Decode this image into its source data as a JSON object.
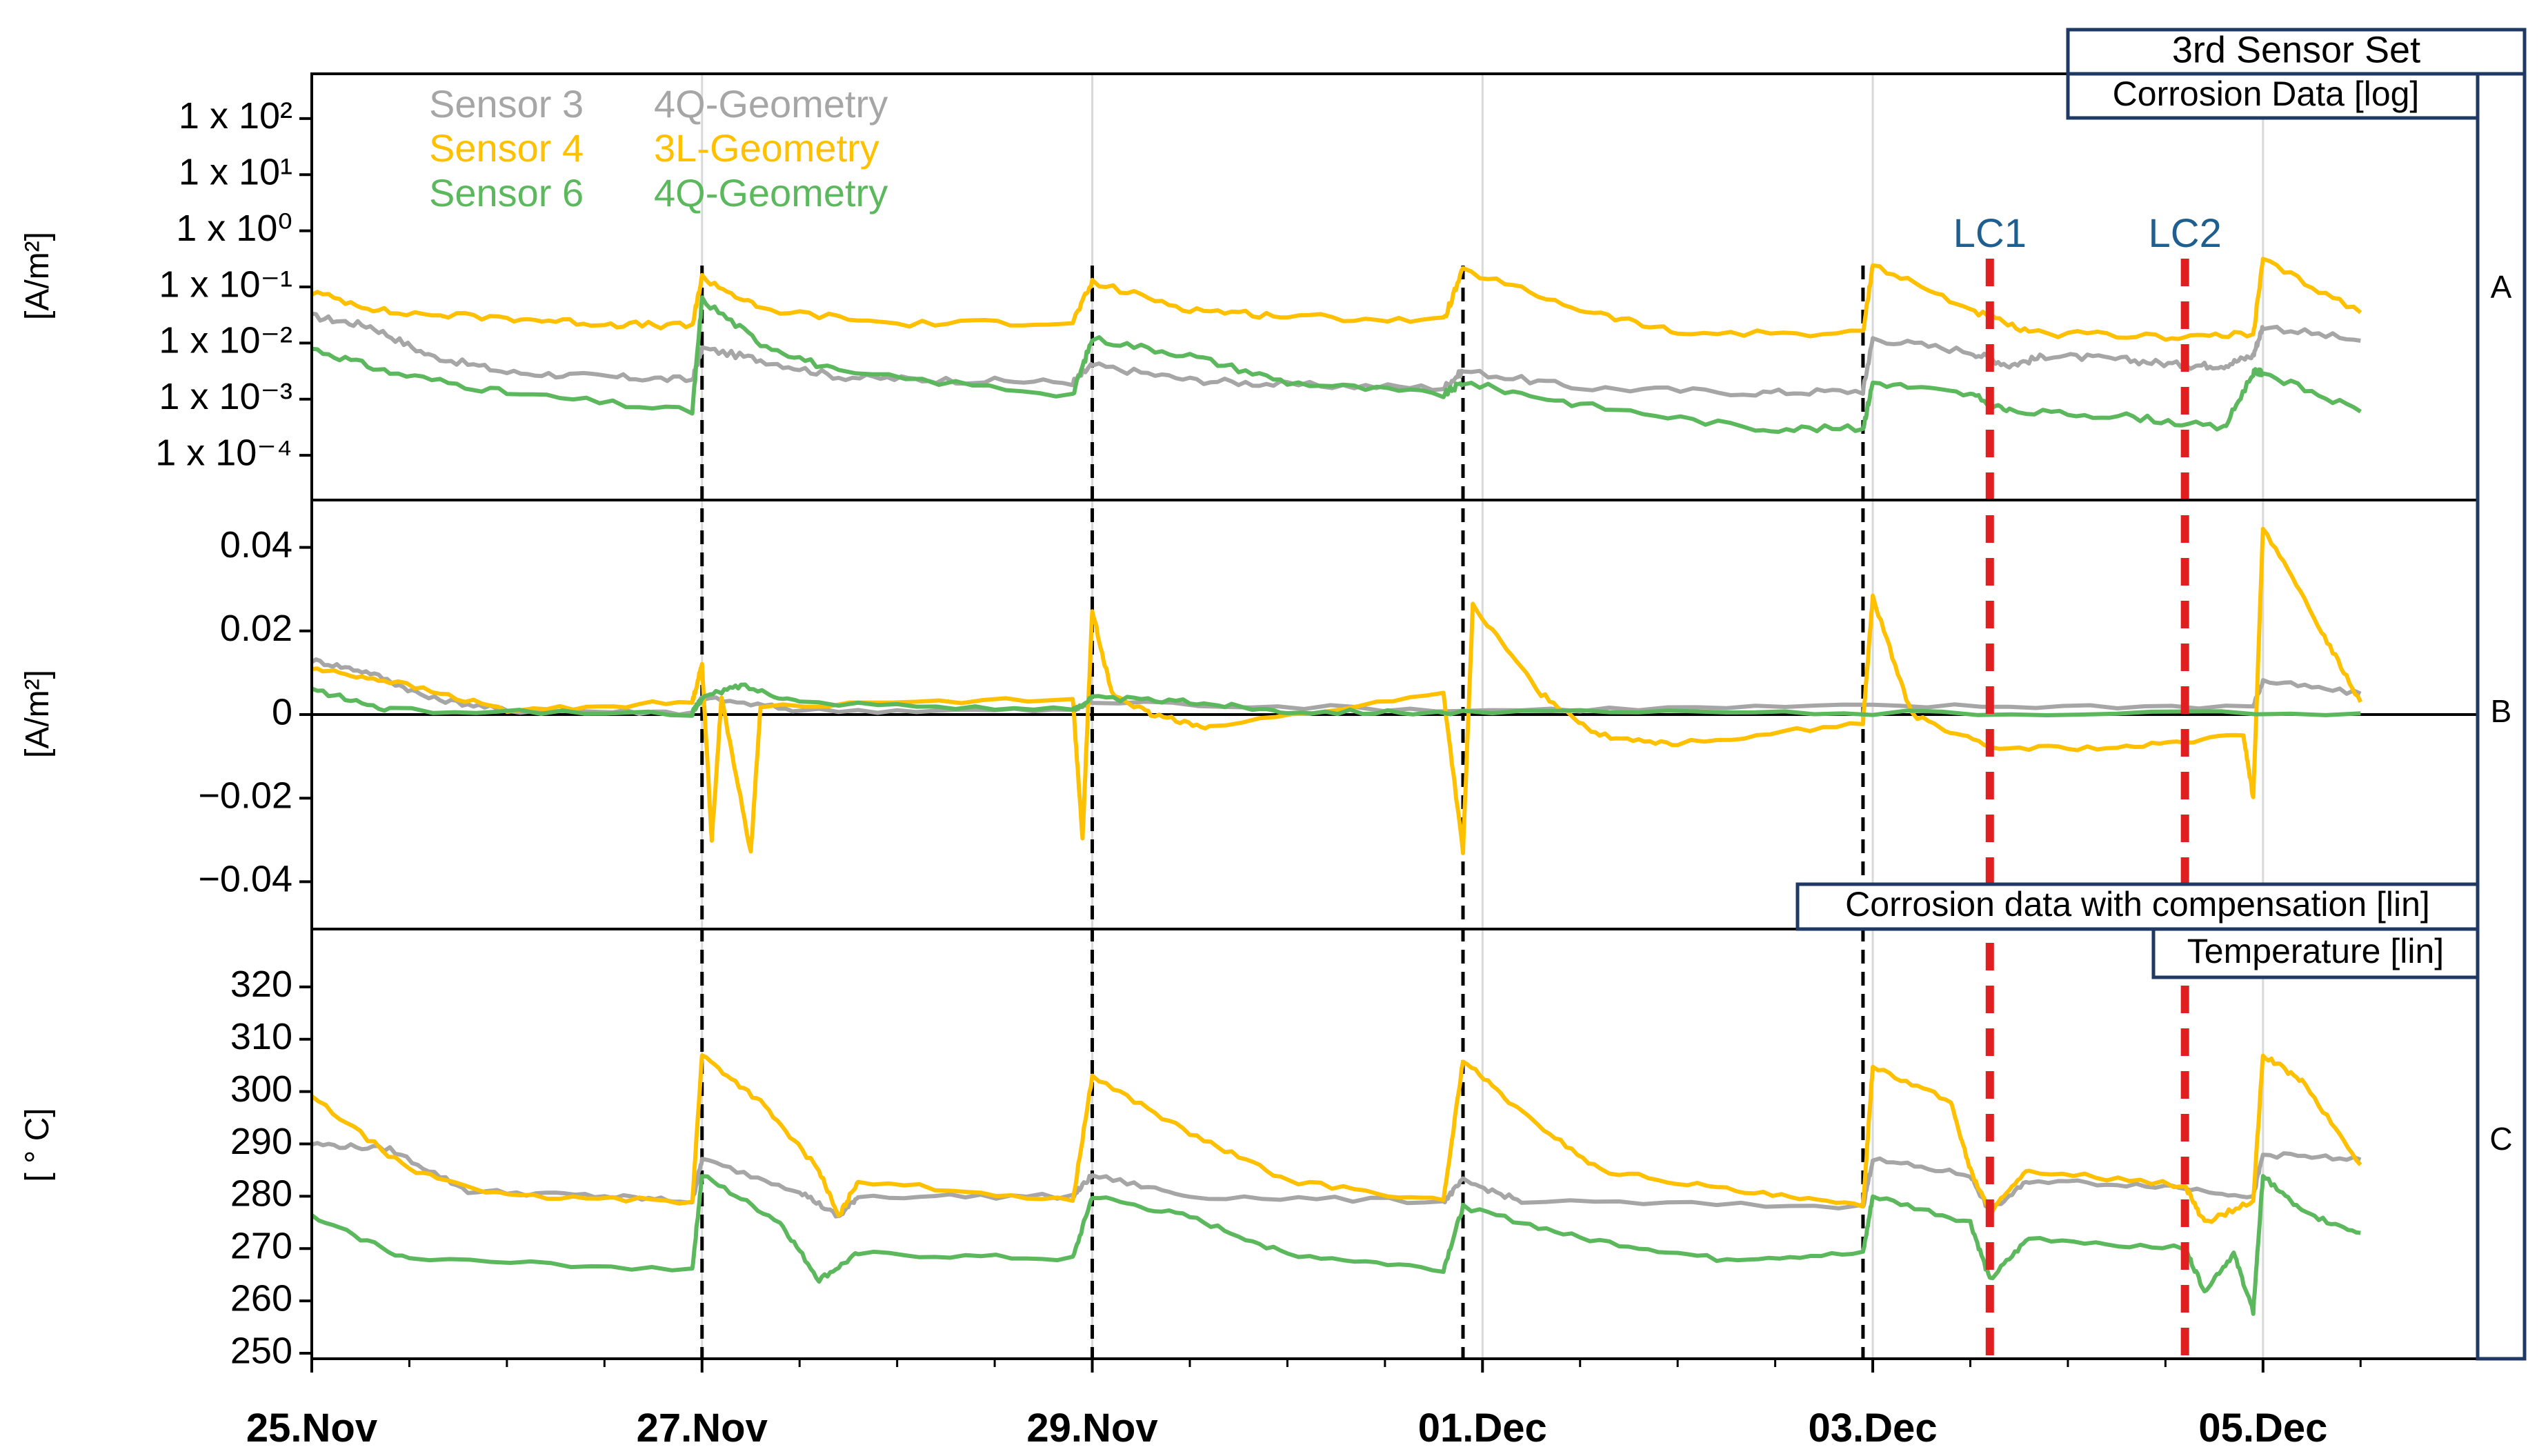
{
  "set_title": "3rd Sensor Set",
  "chart_data": [
    {
      "id": "A",
      "type": "line",
      "panel_label": "A",
      "title": "Corrosion Data [log]",
      "ylabel": "[A/m²]",
      "yscale": "log",
      "ylim": [
        2e-05,
        500
      ],
      "y_tick_labels": [
        "1 x 10²",
        "1 x 10¹",
        "1 x 10⁰",
        "1 x 10⁻¹",
        "1 x 10⁻²",
        "1 x 10⁻³",
        "1 x 10⁻⁴"
      ],
      "y_tick_values": [
        100,
        10,
        1,
        0.1,
        0.01,
        0.001,
        0.0001
      ],
      "series": [
        {
          "name": "Sensor 3",
          "geometry": "4Q-Geometry",
          "color": "#a6a6a6",
          "points": [
            [
              0,
              0.03
            ],
            [
              0.3,
              0.02
            ],
            [
              0.6,
              0.006
            ],
            [
              1.0,
              0.003
            ],
            [
              1.5,
              0.0025
            ],
            [
              1.95,
              0.0022
            ],
            [
              2.0,
              0.008
            ],
            [
              2.3,
              0.005
            ],
            [
              2.7,
              0.0025
            ],
            [
              3.2,
              0.0022
            ],
            [
              3.9,
              0.002
            ],
            [
              4.0,
              0.004
            ],
            [
              4.5,
              0.0022
            ],
            [
              5.0,
              0.0018
            ],
            [
              5.8,
              0.0016
            ],
            [
              5.9,
              0.0032
            ],
            [
              6.5,
              0.0016
            ],
            [
              7.4,
              0.0013
            ],
            [
              7.95,
              0.0014
            ],
            [
              8.0,
              0.012
            ],
            [
              8.5,
              0.007
            ],
            [
              8.7,
              0.004
            ],
            [
              8.9,
              0.006
            ],
            [
              9.3,
              0.005
            ],
            [
              9.6,
              0.004
            ],
            [
              9.8,
              0.004
            ],
            [
              9.95,
              0.006
            ],
            [
              10.0,
              0.02
            ],
            [
              10.5,
              0.011
            ]
          ]
        },
        {
          "name": "Sensor 4",
          "geometry": "3L-Geometry",
          "color": "#ffc000",
          "points": [
            [
              0,
              0.08
            ],
            [
              0.4,
              0.035
            ],
            [
              1.0,
              0.028
            ],
            [
              1.5,
              0.022
            ],
            [
              1.95,
              0.02
            ],
            [
              2.0,
              0.15
            ],
            [
              2.3,
              0.04
            ],
            [
              3.0,
              0.022
            ],
            [
              3.9,
              0.024
            ],
            [
              4.0,
              0.12
            ],
            [
              4.5,
              0.04
            ],
            [
              5.0,
              0.03
            ],
            [
              5.8,
              0.025
            ],
            [
              5.9,
              0.2
            ],
            [
              6.5,
              0.04
            ],
            [
              7.0,
              0.015
            ],
            [
              7.95,
              0.015
            ],
            [
              8.0,
              0.25
            ],
            [
              8.5,
              0.04
            ],
            [
              8.8,
              0.015
            ],
            [
              9.5,
              0.013
            ],
            [
              9.95,
              0.014
            ],
            [
              10.0,
              0.3
            ],
            [
              10.5,
              0.035
            ]
          ]
        },
        {
          "name": "Sensor 6",
          "geometry": "4Q-Geometry",
          "color": "#5cb85c",
          "points": [
            [
              0,
              0.008
            ],
            [
              0.4,
              0.003
            ],
            [
              1.0,
              0.0013
            ],
            [
              1.95,
              0.0006
            ],
            [
              2.0,
              0.06
            ],
            [
              2.3,
              0.01
            ],
            [
              2.7,
              0.003
            ],
            [
              3.9,
              0.0012
            ],
            [
              4.0,
              0.012
            ],
            [
              4.5,
              0.006
            ],
            [
              5.0,
              0.002
            ],
            [
              5.8,
              0.0012
            ],
            [
              5.9,
              0.002
            ],
            [
              6.5,
              0.0008
            ],
            [
              7.4,
              0.0003
            ],
            [
              7.95,
              0.0003
            ],
            [
              8.0,
              0.002
            ],
            [
              8.5,
              0.0012
            ],
            [
              8.7,
              0.0006
            ],
            [
              9.3,
              0.0005
            ],
            [
              9.8,
              0.0003
            ],
            [
              9.95,
              0.003
            ],
            [
              10.0,
              0.003
            ],
            [
              10.5,
              0.0006
            ]
          ]
        }
      ]
    },
    {
      "id": "B",
      "type": "line",
      "panel_label": "B",
      "title": "Corrosion data with compensation [lin]",
      "ylabel": "[A/m²]",
      "ylim": [
        -0.05,
        0.05
      ],
      "y_tick_labels": [
        "0.04",
        "0.02",
        "0",
        "−0.02",
        "−0.04"
      ],
      "y_tick_values": [
        0.04,
        0.02,
        0,
        -0.02,
        -0.04
      ],
      "series": [
        {
          "name": "Sensor 3",
          "color": "#a6a6a6",
          "points": [
            [
              0,
              0.013
            ],
            [
              0.3,
              0.01
            ],
            [
              0.6,
              0.004
            ],
            [
              1.0,
              0.001
            ],
            [
              1.95,
              0.0005
            ],
            [
              2.0,
              0.004
            ],
            [
              2.5,
              0.001
            ],
            [
              3.9,
              0.001
            ],
            [
              4.0,
              0.003
            ],
            [
              5.9,
              0.001
            ],
            [
              8.0,
              0.002
            ],
            [
              9.95,
              0.002
            ],
            [
              10.0,
              0.008
            ],
            [
              10.5,
              0.005
            ]
          ]
        },
        {
          "name": "Sensor 4",
          "color": "#ffc000",
          "points": [
            [
              0,
              0.011
            ],
            [
              0.4,
              0.008
            ],
            [
              1.0,
              0.001
            ],
            [
              1.95,
              0.003
            ],
            [
              2.0,
              0.012
            ],
            [
              2.05,
              -0.03
            ],
            [
              2.1,
              0.004
            ],
            [
              2.25,
              -0.033
            ],
            [
              2.3,
              0.002
            ],
            [
              3.9,
              0.004
            ],
            [
              3.95,
              -0.03
            ],
            [
              4.0,
              0.025
            ],
            [
              4.1,
              0.005
            ],
            [
              4.3,
              0.0
            ],
            [
              4.6,
              -0.003
            ],
            [
              5.8,
              0.005
            ],
            [
              5.9,
              -0.033
            ],
            [
              5.95,
              0.026
            ],
            [
              6.3,
              0.005
            ],
            [
              6.6,
              -0.005
            ],
            [
              7.0,
              -0.007
            ],
            [
              7.95,
              -0.002
            ],
            [
              8.0,
              0.028
            ],
            [
              8.2,
              0.0
            ],
            [
              8.6,
              -0.008
            ],
            [
              9.3,
              -0.008
            ],
            [
              9.9,
              -0.005
            ],
            [
              9.95,
              -0.02
            ],
            [
              10.0,
              0.045
            ],
            [
              10.3,
              0.02
            ],
            [
              10.5,
              0.003
            ]
          ]
        },
        {
          "name": "Sensor 6",
          "color": "#5cb85c",
          "points": [
            [
              0,
              0.006
            ],
            [
              0.4,
              0.001
            ],
            [
              1.95,
              0.0003
            ],
            [
              2.0,
              0.004
            ],
            [
              2.2,
              0.007
            ],
            [
              2.5,
              0.003
            ],
            [
              3.9,
              0.001
            ],
            [
              4.0,
              0.004
            ],
            [
              4.5,
              0.003
            ],
            [
              5.0,
              0.0008
            ],
            [
              5.9,
              0.0005
            ],
            [
              8.0,
              0.0004
            ],
            [
              10.5,
              0.0003
            ]
          ]
        }
      ]
    },
    {
      "id": "C",
      "type": "line",
      "panel_label": "C",
      "title": "Temperature [lin]",
      "ylabel": "[ ° C]",
      "ylim": [
        250,
        330
      ],
      "y_tick_labels": [
        "320",
        "310",
        "300",
        "290",
        "280",
        "270",
        "260",
        "250"
      ],
      "y_tick_values": [
        320,
        310,
        300,
        290,
        280,
        270,
        260,
        250
      ],
      "x_tick_labels": [
        "25.Nov",
        "27.Nov",
        "29.Nov",
        "01.Dec",
        "03.Dec",
        "05.Dec"
      ],
      "x_tick_values": [
        0,
        2,
        4,
        6,
        8,
        10
      ],
      "series": [
        {
          "name": "Sensor 3",
          "color": "#a6a6a6",
          "points": [
            [
              0,
              290
            ],
            [
              0.4,
              289
            ],
            [
              0.8,
              281
            ],
            [
              1.5,
              280
            ],
            [
              1.95,
              279
            ],
            [
              2.0,
              287
            ],
            [
              2.5,
              281
            ],
            [
              2.7,
              276
            ],
            [
              2.8,
              280
            ],
            [
              3.9,
              280
            ],
            [
              4.0,
              284
            ],
            [
              4.5,
              280
            ],
            [
              5.8,
              279
            ],
            [
              5.9,
              283
            ],
            [
              6.2,
              279
            ],
            [
              7.95,
              278
            ],
            [
              8.0,
              287
            ],
            [
              8.5,
              284
            ],
            [
              8.6,
              277
            ],
            [
              8.8,
              283
            ],
            [
              9.5,
              282
            ],
            [
              9.95,
              280
            ],
            [
              10.0,
              288
            ],
            [
              10.5,
              287
            ]
          ]
        },
        {
          "name": "Sensor 4",
          "color": "#ffc000",
          "points": [
            [
              0,
              299
            ],
            [
              0.5,
              285
            ],
            [
              1.0,
              280
            ],
            [
              1.95,
              279
            ],
            [
              2.0,
              307
            ],
            [
              2.3,
              298
            ],
            [
              2.6,
              285
            ],
            [
              2.7,
              276
            ],
            [
              2.8,
              283
            ],
            [
              3.9,
              279
            ],
            [
              4.0,
              303
            ],
            [
              4.5,
              292
            ],
            [
              5.0,
              283
            ],
            [
              5.8,
              279
            ],
            [
              5.9,
              306
            ],
            [
              6.2,
              296
            ],
            [
              6.6,
              285
            ],
            [
              7.3,
              281
            ],
            [
              7.95,
              278
            ],
            [
              8.0,
              305
            ],
            [
              8.4,
              298
            ],
            [
              8.5,
              285
            ],
            [
              8.6,
              277
            ],
            [
              8.8,
              285
            ],
            [
              9.6,
              282
            ],
            [
              9.7,
              275
            ],
            [
              9.95,
              279
            ],
            [
              10.0,
              307
            ],
            [
              10.2,
              302
            ],
            [
              10.5,
              286
            ]
          ]
        },
        {
          "name": "Sensor 6",
          "color": "#5cb85c",
          "points": [
            [
              0,
              276
            ],
            [
              0.5,
              268
            ],
            [
              1.95,
              266
            ],
            [
              2.0,
              284
            ],
            [
              2.4,
              275
            ],
            [
              2.6,
              264
            ],
            [
              2.8,
              269
            ],
            [
              3.9,
              268
            ],
            [
              4.0,
              280
            ],
            [
              4.5,
              276
            ],
            [
              5.0,
              269
            ],
            [
              5.8,
              266
            ],
            [
              5.9,
              278
            ],
            [
              6.5,
              272
            ],
            [
              7.2,
              268
            ],
            [
              7.95,
              269
            ],
            [
              8.0,
              280
            ],
            [
              8.5,
              275
            ],
            [
              8.6,
              264
            ],
            [
              8.8,
              272
            ],
            [
              9.6,
              270
            ],
            [
              9.7,
              262
            ],
            [
              9.85,
              269
            ],
            [
              9.95,
              258
            ],
            [
              10.0,
              284
            ],
            [
              10.2,
              277
            ],
            [
              10.5,
              273
            ]
          ]
        }
      ]
    }
  ],
  "legend": [
    {
      "sensor": "Sensor 3",
      "geometry": "4Q-Geometry",
      "color": "#a6a6a6"
    },
    {
      "sensor": "Sensor 4",
      "geometry": "3L-Geometry",
      "color": "#ffc000"
    },
    {
      "sensor": "Sensor 6",
      "geometry": "4Q-Geometry",
      "color": "#5cb85c"
    }
  ],
  "markers": {
    "black_dashed_x": [
      2,
      4,
      5.9,
      7.95
    ],
    "red_dashed": [
      {
        "label": "LC1",
        "x": 8.6
      },
      {
        "label": "LC2",
        "x": 9.6
      }
    ],
    "red_color": "#e02020"
  },
  "x_range": [
    0,
    11.1
  ]
}
